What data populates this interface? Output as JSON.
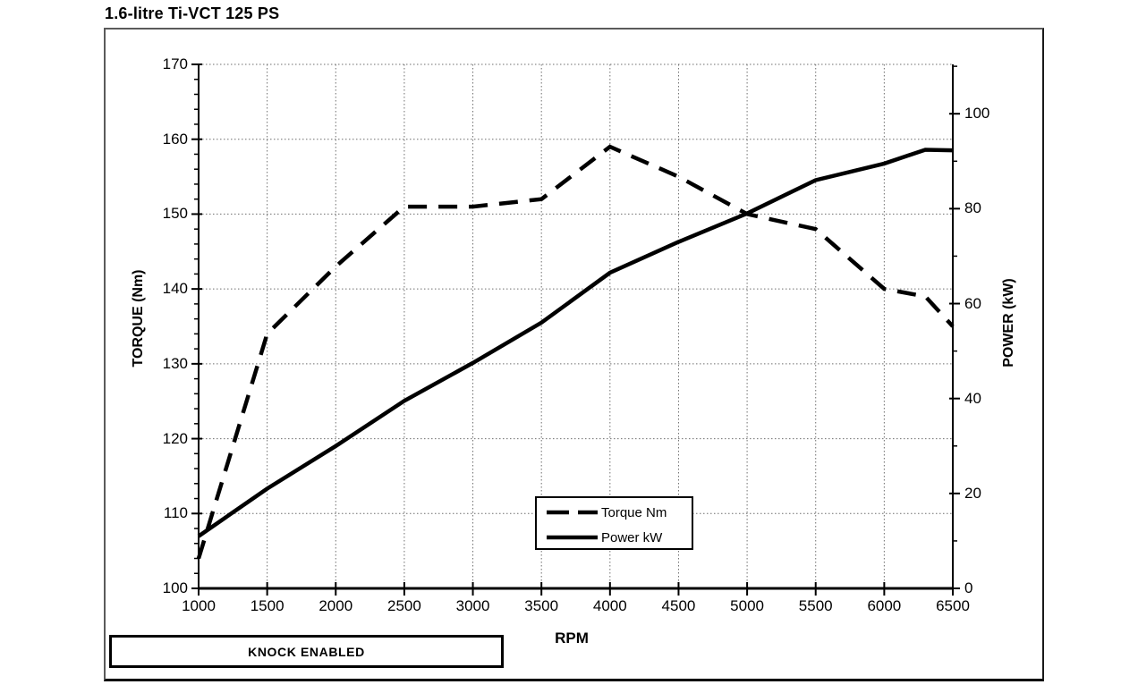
{
  "title": "1.6-litre Ti-VCT 125 PS",
  "annotation": {
    "knock_label": "KNOCK ENABLED"
  },
  "legend": {
    "items": [
      {
        "label": "Torque Nm",
        "style": "dashed"
      },
      {
        "label": "Power kW",
        "style": "solid"
      }
    ]
  },
  "chart_data": {
    "type": "line",
    "title": "1.6-litre Ti-VCT 125 PS",
    "xlabel": "RPM",
    "ylabel_left": "TORQUE (Nm)",
    "ylabel_right": "POWER (kW)",
    "grid": true,
    "legend_position": "inside-bottom-center",
    "x_axis": {
      "min": 1000,
      "max": 6500,
      "tick_step": 500,
      "ticks": [
        1000,
        1500,
        2000,
        2500,
        3000,
        3500,
        4000,
        4500,
        5000,
        5500,
        6000,
        6500
      ]
    },
    "left_axis": {
      "label": "TORQUE (Nm)",
      "min": 100,
      "max": 170,
      "ticks": [
        100,
        110,
        120,
        130,
        140,
        150,
        160,
        170
      ],
      "minor_step": 2
    },
    "right_axis": {
      "label": "POWER (kW)",
      "min": 0,
      "max": 110.4,
      "ticks": [
        0,
        20,
        40,
        60,
        80,
        100
      ],
      "minor_step": 10
    },
    "series": [
      {
        "name": "Torque Nm",
        "axis": "left",
        "line_style": "dashed",
        "color": "#000000",
        "points": [
          [
            1000,
            104
          ],
          [
            1500,
            134
          ],
          [
            2000,
            143
          ],
          [
            2500,
            151
          ],
          [
            3000,
            151
          ],
          [
            3500,
            152
          ],
          [
            4000,
            159
          ],
          [
            4500,
            155
          ],
          [
            5000,
            150
          ],
          [
            5500,
            148
          ],
          [
            6000,
            140
          ],
          [
            6300,
            139
          ],
          [
            6500,
            135
          ]
        ]
      },
      {
        "name": "Power kW",
        "axis": "right",
        "line_style": "solid",
        "color": "#000000",
        "points": [
          [
            1000,
            11
          ],
          [
            1500,
            21
          ],
          [
            2000,
            30
          ],
          [
            2500,
            39.5
          ],
          [
            3000,
            47.5
          ],
          [
            3500,
            56
          ],
          [
            4000,
            66.5
          ],
          [
            4500,
            73
          ],
          [
            5000,
            79
          ],
          [
            5500,
            86
          ],
          [
            6000,
            89.5
          ],
          [
            6300,
            92.4
          ],
          [
            6500,
            92.3
          ]
        ]
      }
    ]
  }
}
